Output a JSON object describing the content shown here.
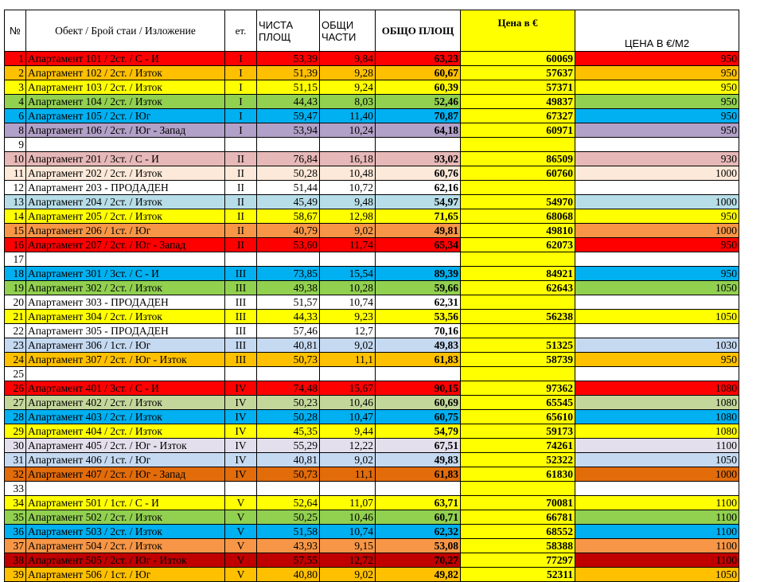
{
  "headers": {
    "num": "№",
    "name": "Обект /  Брой стаи / Изложение",
    "floor": "ет.",
    "net_line1": "ЧИСТА",
    "net_line2": "ПЛОЩ",
    "common_line1": "ОБЩИ",
    "common_line2": "ЧАСТИ",
    "total": "ОБЩО ПЛОЩ",
    "price": "Цена в €",
    "ppm": "ЦЕНА В €/М2"
  },
  "colors": {
    "red": "#ff0000",
    "orange": "#ffc000",
    "yellow": "#ffff00",
    "green": "#92d050",
    "blue": "#00b0f0",
    "lavender": "#b1a0c7",
    "pink": "#e6b8b7",
    "peach": "#fde9d9",
    "white": "#ffffff",
    "lightblue": "#b7dee8",
    "salmon": "#f79646",
    "sage": "#c4d79b",
    "palelavender": "#e4dfec",
    "paleblue": "#c5d9f1",
    "burnt": "#e26b0a",
    "darkred": "#c00000"
  },
  "rows": [
    {
      "num": "1",
      "name": "Апартамент 101  / 2ст. / С - И",
      "floor": "I",
      "net": "53,39",
      "common": "9,84",
      "total": "63,23",
      "price": "60069",
      "ppm": "950",
      "color": "red"
    },
    {
      "num": "2",
      "name": "Апартамент 102 / 2ст. / Изток",
      "floor": "I",
      "net": "51,39",
      "common": "9,28",
      "total": "60,67",
      "price": "57637",
      "ppm": "950",
      "color": "orange"
    },
    {
      "num": "3",
      "name": "Апартамент 103 / 2ст. / Изток",
      "floor": "I",
      "net": "51,15",
      "common": "9,24",
      "total": "60,39",
      "price": "57371",
      "ppm": "950",
      "color": "yellow"
    },
    {
      "num": "4",
      "name": "Апартамент 104 / 2ст. / Изток",
      "floor": "I",
      "net": "44,43",
      "common": "8,03",
      "total": "52,46",
      "price": "49837",
      "ppm": "950",
      "color": "green"
    },
    {
      "num": "6",
      "name": "Апартамент 105 / 2ст. / Юг",
      "floor": "I",
      "net": "59,47",
      "common": "11,40",
      "total": "70,87",
      "price": "67327",
      "ppm": "950",
      "color": "blue"
    },
    {
      "num": "8",
      "name": "Апартамент 106 / 2ст. / Юг - Запад",
      "floor": "I",
      "net": "53,94",
      "common": "10,24",
      "total": "64,18",
      "price": "60971",
      "ppm": "950",
      "color": "lavender"
    },
    {
      "num": "9",
      "name": "",
      "floor": "",
      "net": "",
      "common": "",
      "total": "",
      "price": "",
      "ppm": "",
      "color": "white"
    },
    {
      "num": "10",
      "name": "Апартамент 201 / 3ст. / С - И",
      "floor": "II",
      "net": "76,84",
      "common": "16,18",
      "total": "93,02",
      "price": "86509",
      "ppm": "930",
      "color": "pink"
    },
    {
      "num": "11",
      "name": "Апартамент 202 / 2ст. / Изток",
      "floor": "II",
      "net": "50,28",
      "common": "10,48",
      "total": "60,76",
      "price": "60760",
      "ppm": "1000",
      "color": "peach"
    },
    {
      "num": "12",
      "name": "Апартамент 203 - ПРОДАДЕН",
      "floor": "II",
      "net": "51,44",
      "common": "10,72",
      "total": "62,16",
      "price": "",
      "ppm": "",
      "color": "white"
    },
    {
      "num": "13",
      "name": "Апартамент 204 / 2ст. / Изток",
      "floor": "II",
      "net": "45,49",
      "common": "9,48",
      "total": "54,97",
      "price": "54970",
      "ppm": "1000",
      "color": "lightblue"
    },
    {
      "num": "14",
      "name": "Апартамент 205 / 2ст. / Изток",
      "floor": "II",
      "net": "58,67",
      "common": "12,98",
      "total": "71,65",
      "price": "68068",
      "ppm": "950",
      "color": "yellow"
    },
    {
      "num": "15",
      "name": "Апартамент 206 / 1ст. / Юг",
      "floor": "II",
      "net": "40,79",
      "common": "9,02",
      "total": "49,81",
      "price": "49810",
      "ppm": "1000",
      "color": "salmon"
    },
    {
      "num": "16",
      "name": "Апартамент 207 / 2ст. / Юг - Запад",
      "floor": "II",
      "net": "53,60",
      "common": "11,74",
      "total": "65,34",
      "price": "62073",
      "ppm": "950",
      "color": "red"
    },
    {
      "num": "17",
      "name": "",
      "floor": "",
      "net": "",
      "common": "",
      "total": "",
      "price": "",
      "ppm": "",
      "color": "white"
    },
    {
      "num": "18",
      "name": "Апартамент 301 / 3ст. / С - И",
      "floor": "III",
      "net": "73,85",
      "common": "15,54",
      "total": "89,39",
      "price": "84921",
      "ppm": "950",
      "color": "blue"
    },
    {
      "num": "19",
      "name": "Апартамент 302 / 2ст. / Изток",
      "floor": "III",
      "net": "49,38",
      "common": "10,28",
      "total": "59,66",
      "price": "62643",
      "ppm": "1050",
      "color": "green"
    },
    {
      "num": "20",
      "name": "Апартамент 303 - ПРОДАДЕН",
      "floor": "III",
      "net": "51,57",
      "common": "10,74",
      "total": "62,31",
      "price": "",
      "ppm": "",
      "color": "white"
    },
    {
      "num": "21",
      "name": "Апартамент 304 / 2ст. / Изток",
      "floor": "III",
      "net": "44,33",
      "common": "9,23",
      "total": "53,56",
      "price": "56238",
      "ppm": "1050",
      "color": "yellow"
    },
    {
      "num": "22",
      "name": "Апартамент 305 - ПРОДАДЕН",
      "floor": "III",
      "net": "57,46",
      "common": "12,7",
      "total": "70,16",
      "price": "",
      "ppm": "",
      "color": "white"
    },
    {
      "num": "23",
      "name": "Апартамент 306 / 1ст. / Юг",
      "floor": "III",
      "net": "40,81",
      "common": "9,02",
      "total": "49,83",
      "price": "51325",
      "ppm": "1030",
      "color": "paleblue"
    },
    {
      "num": "24",
      "name": "Апартамент 307 / 2ст. / Юг - Изток",
      "floor": "III",
      "net": "50,73",
      "common": "11,1",
      "total": "61,83",
      "price": "58739",
      "ppm": "950",
      "color": "orange"
    },
    {
      "num": "25",
      "name": "",
      "floor": "",
      "net": "",
      "common": "",
      "total": "",
      "price": "",
      "ppm": "",
      "color": "white"
    },
    {
      "num": "26",
      "name": "Апартамент 401 / 3ст. / С - И",
      "floor": "IV",
      "net": "74,48",
      "common": "15,67",
      "total": "90,15",
      "price": "97362",
      "ppm": "1080",
      "color": "red"
    },
    {
      "num": "27",
      "name": "Апартамент 402 / 2ст. / Изток",
      "floor": "IV",
      "net": "50,23",
      "common": "10,46",
      "total": "60,69",
      "price": "65545",
      "ppm": "1080",
      "color": "sage"
    },
    {
      "num": "28",
      "name": "Апартамент 403 / 2ст. / Изток",
      "floor": "IV",
      "net": "50,28",
      "common": "10,47",
      "total": "60,75",
      "price": "65610",
      "ppm": "1080",
      "color": "blue"
    },
    {
      "num": "29",
      "name": "Апартамент 404 / 2ст. / Изток",
      "floor": "IV",
      "net": "45,35",
      "common": "9,44",
      "total": "54,79",
      "price": "59173",
      "ppm": "1080",
      "color": "yellow"
    },
    {
      "num": "30",
      "name": "Апартамент 405 / 2ст. / Юг - Изток",
      "floor": "IV",
      "net": "55,29",
      "common": "12,22",
      "total": "67,51",
      "price": "74261",
      "ppm": "1100",
      "color": "palelavender"
    },
    {
      "num": "31",
      "name": "Апартамент 406 / 1ст. / Юг",
      "floor": "IV",
      "net": "40,81",
      "common": "9,02",
      "total": "49,83",
      "price": "52322",
      "ppm": "1050",
      "color": "paleblue"
    },
    {
      "num": "32",
      "name": "Апартамент 407 / 2ст. / Юг - Запад",
      "floor": "IV",
      "net": "50,73",
      "common": "11,1",
      "total": "61,83",
      "price": "61830",
      "ppm": "1000",
      "color": "burnt"
    },
    {
      "num": "33",
      "name": "",
      "floor": "",
      "net": "",
      "common": "",
      "total": "",
      "price": "",
      "ppm": "",
      "color": "white"
    },
    {
      "num": "34",
      "name": "Апартамент 501 /  1ст. / С - И",
      "floor": "V",
      "net": "52,64",
      "common": "11,07",
      "total": "63,71",
      "price": "70081",
      "ppm": "1100",
      "color": "yellow"
    },
    {
      "num": "35",
      "name": "Апартамент 502 / 2ст. / Изток",
      "floor": "V",
      "net": "50,25",
      "common": "10,46",
      "total": "60,71",
      "price": "66781",
      "ppm": "1100",
      "color": "green"
    },
    {
      "num": "36",
      "name": "Апартамент 503 / 2ст. / Изток",
      "floor": "V",
      "net": "51,58",
      "common": "10,74",
      "total": "62,32",
      "price": "68552",
      "ppm": "1100",
      "color": "blue"
    },
    {
      "num": "37",
      "name": "Апартамент 504 / 2ст. / Изток",
      "floor": "V",
      "net": "43,93",
      "common": "9,15",
      "total": "53,08",
      "price": "58388",
      "ppm": "1100",
      "color": "salmon"
    },
    {
      "num": "38",
      "name": "Апартамент 505 / 2ст. / Юг - Изток",
      "floor": "V",
      "net": "57,55",
      "common": "12,72",
      "total": "70,27",
      "price": "77297",
      "ppm": "1100",
      "color": "darkred"
    },
    {
      "num": "39",
      "name": "Апартамент 506 / 1ст. / Юг",
      "floor": "V",
      "net": "40,80",
      "common": "9,02",
      "total": "49,82",
      "price": "52311",
      "ppm": "1050",
      "color": "orange"
    }
  ]
}
